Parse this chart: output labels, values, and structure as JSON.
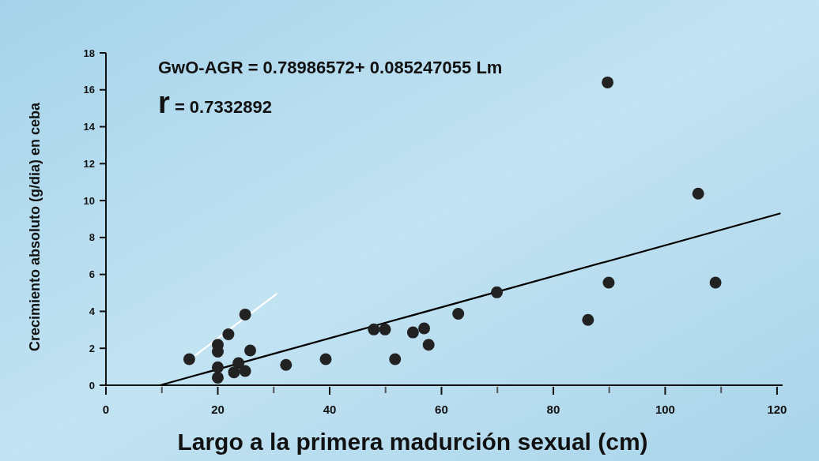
{
  "chart_data": {
    "type": "scatter",
    "xlabel": "Largo a la primera madurción sexual (cm)",
    "ylabel": "Crecimiento absoluto (g/dia) en ceba",
    "xlim": [
      0,
      121
    ],
    "ylim": [
      0,
      18
    ],
    "xticks": [
      0,
      {
        "value": 10,
        "label": null
      },
      20,
      {
        "value": 30,
        "label": null
      },
      40,
      {
        "value": 50,
        "label": null
      },
      60,
      {
        "value": 70,
        "label": null
      },
      80,
      {
        "value": 90,
        "label": null
      },
      100,
      {
        "value": 110,
        "label": null
      },
      120
    ],
    "yticks": [
      0,
      2,
      4,
      6,
      8,
      10,
      12,
      14,
      16,
      18
    ],
    "grid": false,
    "marker": "circle",
    "annotations": [
      "GwO-AGR = 0.78986572+ 0.085247055 Lm",
      "r = 0.7332892"
    ],
    "series": [
      {
        "color": "#222222",
        "x": [
          14.9,
          20,
          20,
          20,
          20,
          21.9,
          24.9,
          25.8,
          23.7,
          22.9,
          24.9,
          32.2,
          39.3,
          47.9,
          49.9,
          51.7,
          54.9,
          56.9,
          57.7,
          63,
          69.9,
          86.2,
          89.9,
          89.7,
          105.9,
          109
        ],
        "values": [
          1.41,
          2.19,
          1.82,
          0.97,
          0.41,
          2.76,
          3.83,
          1.88,
          1.2,
          0.7,
          0.77,
          1.1,
          1.41,
          3.02,
          3.02,
          1.41,
          2.86,
          3.08,
          2.19,
          3.87,
          5.03,
          3.54,
          5.56,
          16.4,
          10.38,
          5.56
        ]
      },
      {
        "type": "line",
        "marker": "none",
        "color": "#000000",
        "line_style": "solid",
        "x": [
          9.7,
          120.5
        ],
        "values": [
          0,
          9.3
        ]
      },
      {
        "type": "line",
        "marker": "none",
        "color": "#ffffff",
        "line_style": "solid",
        "x": [
          16,
          30.5
        ],
        "values": [
          1.62,
          4.94
        ]
      }
    ]
  }
}
